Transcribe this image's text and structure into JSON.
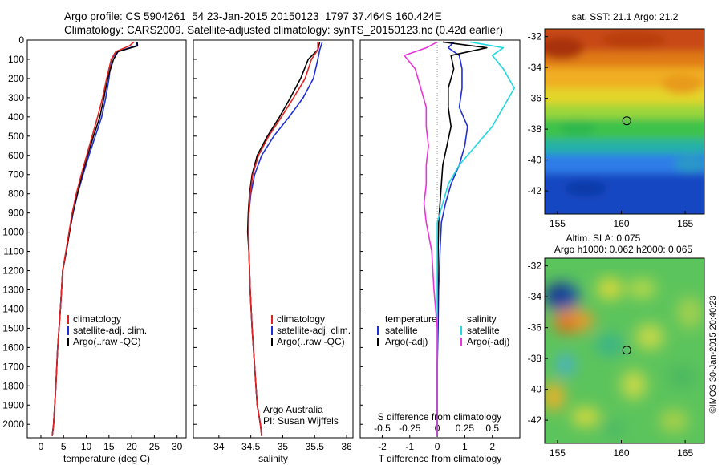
{
  "header": {
    "line1": "Argo profile: CS 5904261_54 23-Jan-2015 20150123_1797 37.464S 160.424E",
    "line2": "Climatology: CARS2009. Satellite-adjusted climatology: synTS_20150123.nc (0.42d earlier)"
  },
  "colors": {
    "climatology": "#e32222",
    "satellite": "#1f2fd6",
    "argo": "#000000",
    "sat_salinity": "#22d8e0",
    "argo_salinity": "#e834d8"
  },
  "credits": {
    "line1": "Argo Australia",
    "line2": "PI: Susan Wijffels"
  },
  "imos_stamp": "©IMOS 30-Jan-2015 20:40:23",
  "chart_data": [
    {
      "type": "line",
      "name": "temperature-profile",
      "xlabel": "temperature (deg C)",
      "xlim": [
        -3,
        32
      ],
      "ylim": [
        2070,
        0
      ],
      "xticks": [
        0,
        5,
        10,
        15,
        20,
        25,
        30
      ],
      "yticks": [
        0,
        100,
        200,
        300,
        400,
        500,
        600,
        700,
        800,
        900,
        1000,
        1100,
        1200,
        1300,
        1400,
        1500,
        1600,
        1700,
        1800,
        1900,
        2000
      ],
      "legend": [
        "climatology",
        "satellite-adj. clim.",
        "Argo(..raw -QC)"
      ],
      "series": [
        {
          "name": "climatology",
          "x": [
            20.5,
            19.5,
            16.5,
            15.5,
            14.5,
            13.6,
            12.5,
            11.3,
            10.1,
            8.9,
            7.8,
            6.9,
            6.2,
            5.5,
            4.8,
            4.3,
            3.7,
            3.3,
            2.8,
            2.5
          ],
          "y": [
            10,
            30,
            60,
            100,
            200,
            300,
            400,
            500,
            600,
            700,
            800,
            900,
            1000,
            1100,
            1200,
            1400,
            1600,
            1800,
            2000,
            2060
          ]
        },
        {
          "name": "satellite-adj. clim.",
          "x": [
            21.2,
            21.0,
            16.8,
            15.5,
            15.0,
            14.3,
            13.4,
            12.0,
            10.6,
            9.3,
            8.1,
            7.1,
            6.3,
            5.6,
            4.8,
            4.3,
            3.7,
            3.3,
            2.8,
            2.5
          ],
          "y": [
            10,
            30,
            60,
            100,
            200,
            300,
            400,
            500,
            600,
            700,
            800,
            900,
            1000,
            1100,
            1200,
            1400,
            1600,
            1800,
            2000,
            2060
          ]
        },
        {
          "name": "Argo(..raw -QC)",
          "x": [
            21.2,
            21.3,
            17.0,
            16.0,
            14.7,
            13.9,
            13.0,
            11.6,
            10.3,
            9.1,
            8.0,
            7.0,
            6.3,
            5.6,
            4.8,
            4.3,
            3.7,
            3.3,
            2.8,
            2.5
          ],
          "y": [
            10,
            30,
            60,
            100,
            200,
            300,
            400,
            500,
            600,
            700,
            800,
            900,
            1000,
            1100,
            1200,
            1400,
            1600,
            1800,
            2000,
            2060
          ]
        }
      ]
    },
    {
      "type": "line",
      "name": "salinity-profile",
      "xlabel": "salinity",
      "xlim": [
        33.6,
        36.1
      ],
      "ylim": [
        2070,
        0
      ],
      "xticks": [
        34,
        34.5,
        35,
        35.5,
        36
      ],
      "legend": [
        "climatology",
        "satellite-adj. clim.",
        "Argo(..raw -QC)"
      ],
      "series": [
        {
          "name": "climatology",
          "x": [
            35.55,
            35.55,
            35.45,
            35.35,
            35.17,
            34.98,
            34.78,
            34.62,
            34.53,
            34.49,
            34.47,
            34.46,
            34.47,
            34.49,
            34.52,
            34.56,
            34.6,
            34.65,
            34.67
          ],
          "y": [
            10,
            50,
            100,
            200,
            300,
            400,
            500,
            600,
            700,
            800,
            900,
            1000,
            1100,
            1300,
            1500,
            1700,
            1900,
            2000,
            2060
          ]
        },
        {
          "name": "satellite-adj. clim.",
          "x": [
            35.62,
            35.58,
            35.55,
            35.48,
            35.32,
            35.1,
            34.86,
            34.67,
            34.56,
            34.5,
            34.47,
            34.46,
            34.47,
            34.49,
            34.52,
            34.56,
            34.6,
            34.65,
            34.67
          ],
          "y": [
            10,
            50,
            100,
            200,
            300,
            400,
            500,
            600,
            700,
            800,
            900,
            1000,
            1100,
            1300,
            1500,
            1700,
            1900,
            2000,
            2060
          ]
        },
        {
          "name": "Argo(..raw -QC)",
          "x": [
            35.58,
            35.55,
            35.4,
            35.28,
            35.12,
            34.95,
            34.76,
            34.6,
            34.52,
            34.48,
            34.46,
            34.45,
            34.47,
            34.49,
            34.52,
            34.56,
            34.6,
            34.65,
            34.67
          ],
          "y": [
            10,
            50,
            100,
            200,
            300,
            400,
            500,
            600,
            700,
            800,
            900,
            1000,
            1100,
            1300,
            1500,
            1700,
            1900,
            2000,
            2060
          ]
        }
      ]
    },
    {
      "type": "line",
      "name": "difference-profile",
      "xlabel": "T difference from climatology",
      "top_xlabel": "S difference from climatology",
      "xlim": [
        -2.8,
        3.0
      ],
      "ylim": [
        2070,
        0
      ],
      "xticks": [
        -2,
        -1,
        0,
        1,
        2
      ],
      "top_ticks": [
        -0.5,
        -0.25,
        0,
        0.25,
        0.5
      ],
      "top_tick_labels": [
        "-0.5",
        "-0.25",
        "0",
        "0.25",
        "0.5"
      ],
      "legend_temperature_title": "temperature",
      "legend_salinity_title": "salinity",
      "legend_temperature": [
        "satellite",
        "Argo(-adj)"
      ],
      "legend_salinity": [
        "satellite",
        "Argo(-adj)"
      ],
      "series": [
        {
          "name": "T satellite",
          "x": [
            0.6,
            0.4,
            0.8,
            0.9,
            0.9,
            0.8,
            1.1,
            1.0,
            0.8,
            0.5,
            0.3,
            0.15,
            0.1,
            0.05,
            0.03,
            0.0,
            0.0,
            0.0
          ],
          "y": [
            10,
            40,
            80,
            150,
            250,
            350,
            450,
            550,
            650,
            750,
            850,
            950,
            1100,
            1300,
            1500,
            1700,
            1900,
            2060
          ]
        },
        {
          "name": "T Argo(-adj)",
          "x": [
            0.2,
            1.8,
            0.5,
            0.6,
            0.4,
            0.4,
            0.5,
            0.35,
            0.2,
            0.15,
            0.1,
            0.05,
            0.03,
            0.02,
            0.01,
            0.0,
            0.0,
            0.0
          ],
          "y": [
            10,
            40,
            80,
            150,
            250,
            350,
            450,
            550,
            650,
            750,
            850,
            950,
            1100,
            1300,
            1500,
            1700,
            1900,
            2060
          ]
        },
        {
          "name": "S satellite",
          "x": [
            0.3,
            0.6,
            0.5,
            0.6,
            0.7,
            0.6,
            0.5,
            0.35,
            0.2,
            0.1,
            0.05,
            0.0,
            0.0,
            0.0,
            0.0,
            0.0,
            0.0,
            0.0
          ],
          "y": [
            10,
            40,
            80,
            150,
            250,
            350,
            450,
            550,
            650,
            750,
            850,
            950,
            1100,
            1300,
            1500,
            1700,
            1900,
            2060
          ]
        },
        {
          "name": "S Argo(-adj)",
          "x": [
            0.0,
            -0.1,
            -0.3,
            -0.2,
            -0.15,
            -0.1,
            -0.1,
            -0.08,
            -0.1,
            -0.1,
            -0.12,
            -0.1,
            -0.05,
            -0.03,
            0.0,
            0.0,
            0.0,
            0.0
          ],
          "y": [
            10,
            40,
            80,
            150,
            250,
            350,
            450,
            550,
            650,
            750,
            850,
            950,
            1100,
            1300,
            1500,
            1700,
            1900,
            2060
          ]
        }
      ]
    },
    {
      "type": "heatmap",
      "name": "sst-map",
      "title": "sat. SST: 21.1  Argo: 21.2",
      "xlim": [
        154,
        166.5
      ],
      "ylim": [
        -43.5,
        -31.5
      ],
      "xticks": [
        155,
        160,
        165
      ],
      "yticks": [
        -32,
        -34,
        -36,
        -38,
        -40,
        -42
      ],
      "marker": {
        "lon": 160.42,
        "lat": -37.46
      }
    },
    {
      "type": "heatmap",
      "name": "sla-map",
      "title": "Altim. SLA: 0.075",
      "subtitle": "Argo h1000: 0.062 h2000: 0.065",
      "xlim": [
        154,
        166.5
      ],
      "ylim": [
        -43.5,
        -31.5
      ],
      "xticks": [
        155,
        160,
        165
      ],
      "yticks": [
        -32,
        -34,
        -36,
        -38,
        -40,
        -42
      ],
      "marker": {
        "lon": 160.42,
        "lat": -37.46
      }
    }
  ]
}
